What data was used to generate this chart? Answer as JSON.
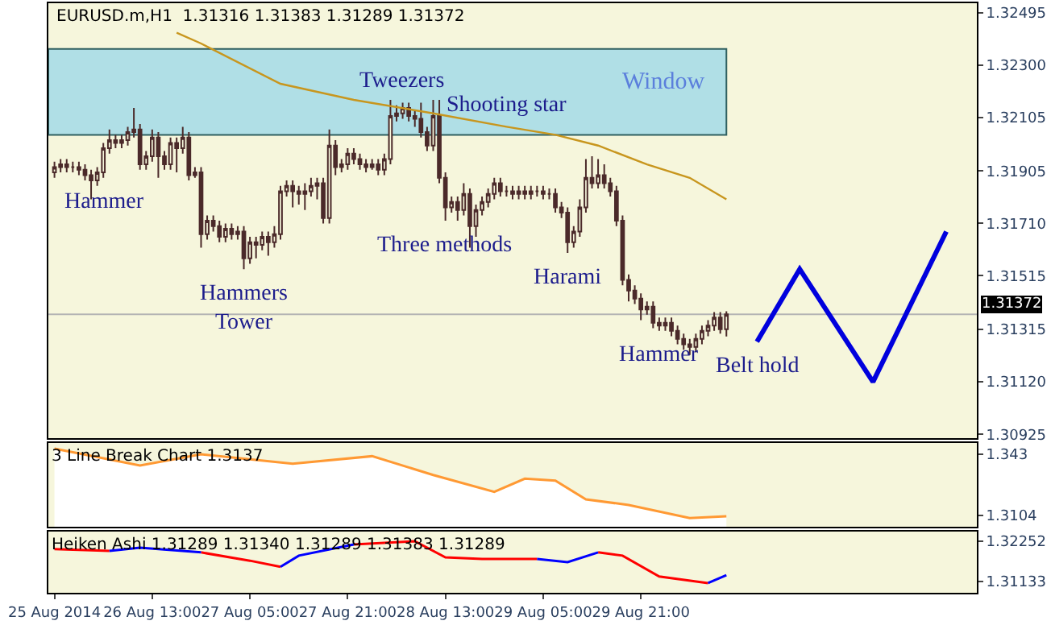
{
  "chart_data": [
    {
      "type": "candlestick",
      "title": "EURUSD.m,H1  1.31316 1.31383 1.31289 1.31372",
      "color": "#4b2a2a",
      "x": [
        "2014-08-25T21:00",
        "2014-08-25T22:00",
        "2014-08-25T23:00",
        "2014-08-26T00:00",
        "2014-08-26T01:00",
        "2014-08-26T02:00",
        "2014-08-26T03:00",
        "2014-08-26T04:00",
        "2014-08-26T05:00",
        "2014-08-26T06:00",
        "2014-08-26T07:00",
        "2014-08-26T08:00",
        "2014-08-26T09:00",
        "2014-08-26T10:00",
        "2014-08-26T11:00",
        "2014-08-26T12:00",
        "2014-08-26T13:00",
        "2014-08-26T14:00",
        "2014-08-26T15:00",
        "2014-08-26T16:00",
        "2014-08-26T17:00",
        "2014-08-26T18:00",
        "2014-08-26T19:00",
        "2014-08-26T20:00",
        "2014-08-26T21:00",
        "2014-08-26T22:00",
        "2014-08-26T23:00",
        "2014-08-27T00:00",
        "2014-08-27T01:00",
        "2014-08-27T02:00",
        "2014-08-27T03:00",
        "2014-08-27T04:00",
        "2014-08-27T05:00",
        "2014-08-27T06:00",
        "2014-08-27T07:00",
        "2014-08-27T08:00",
        "2014-08-27T09:00",
        "2014-08-27T10:00",
        "2014-08-27T11:00",
        "2014-08-27T12:00",
        "2014-08-27T13:00",
        "2014-08-27T14:00",
        "2014-08-27T15:00",
        "2014-08-27T16:00",
        "2014-08-27T17:00",
        "2014-08-27T18:00",
        "2014-08-27T19:00",
        "2014-08-27T20:00",
        "2014-08-27T21:00",
        "2014-08-27T22:00",
        "2014-08-27T23:00",
        "2014-08-28T00:00",
        "2014-08-28T01:00",
        "2014-08-28T02:00",
        "2014-08-28T03:00",
        "2014-08-28T04:00",
        "2014-08-28T05:00",
        "2014-08-28T06:00",
        "2014-08-28T07:00",
        "2014-08-28T08:00",
        "2014-08-28T09:00",
        "2014-08-28T10:00",
        "2014-08-28T11:00",
        "2014-08-28T12:00",
        "2014-08-28T13:00",
        "2014-08-28T14:00",
        "2014-08-28T15:00",
        "2014-08-28T16:00",
        "2014-08-28T17:00",
        "2014-08-28T18:00",
        "2014-08-28T19:00",
        "2014-08-28T20:00",
        "2014-08-28T21:00",
        "2014-08-28T22:00",
        "2014-08-28T23:00",
        "2014-08-29T00:00",
        "2014-08-29T01:00",
        "2014-08-29T02:00",
        "2014-08-29T03:00",
        "2014-08-29T04:00",
        "2014-08-29T05:00",
        "2014-08-29T06:00",
        "2014-08-29T07:00",
        "2014-08-29T08:00",
        "2014-08-29T09:00",
        "2014-08-29T10:00",
        "2014-08-29T11:00",
        "2014-08-29T12:00",
        "2014-08-29T13:00",
        "2014-08-29T14:00",
        "2014-08-29T15:00",
        "2014-08-29T16:00",
        "2014-08-29T17:00",
        "2014-08-29T18:00",
        "2014-08-29T19:00",
        "2014-08-29T20:00",
        "2014-08-29T21:00",
        "2014-08-29T22:00",
        "2014-08-29T23:00",
        "2014-08-30T00:00",
        "2014-08-30T01:00",
        "2014-08-30T02:00",
        "2014-08-30T03:00",
        "2014-08-30T04:00",
        "2014-08-30T05:00",
        "2014-08-30T06:00",
        "2014-08-30T07:00",
        "2014-08-30T08:00",
        "2014-08-30T09:00",
        "2014-08-30T10:00",
        "2014-08-30T11:00"
      ],
      "ohlc": [
        [
          1.319,
          1.3194,
          1.3188,
          1.3192
        ],
        [
          1.3192,
          1.3195,
          1.319,
          1.3193
        ],
        [
          1.3193,
          1.3195,
          1.319,
          1.3192
        ],
        [
          1.3192,
          1.3194,
          1.319,
          1.3192
        ],
        [
          1.3192,
          1.3194,
          1.3189,
          1.3191
        ],
        [
          1.3191,
          1.3193,
          1.3187,
          1.3189
        ],
        [
          1.3189,
          1.3191,
          1.318,
          1.3187
        ],
        [
          1.3187,
          1.3192,
          1.3185,
          1.319
        ],
        [
          1.319,
          1.3201,
          1.3188,
          1.3199
        ],
        [
          1.3199,
          1.3206,
          1.3197,
          1.3202
        ],
        [
          1.3202,
          1.3204,
          1.3199,
          1.3201
        ],
        [
          1.3201,
          1.3204,
          1.3199,
          1.3202
        ],
        [
          1.3202,
          1.3207,
          1.32,
          1.3205
        ],
        [
          1.3205,
          1.3214,
          1.3203,
          1.3206
        ],
        [
          1.3206,
          1.3208,
          1.3191,
          1.3193
        ],
        [
          1.3193,
          1.3198,
          1.3191,
          1.3196
        ],
        [
          1.3196,
          1.3206,
          1.3194,
          1.3203
        ],
        [
          1.3203,
          1.3205,
          1.3188,
          1.3196
        ],
        [
          1.3196,
          1.3198,
          1.3191,
          1.3193
        ],
        [
          1.3193,
          1.3203,
          1.3191,
          1.3201
        ],
        [
          1.3201,
          1.3203,
          1.319,
          1.3199
        ],
        [
          1.3199,
          1.3207,
          1.3197,
          1.3203
        ],
        [
          1.3203,
          1.3205,
          1.3187,
          1.3189
        ],
        [
          1.3189,
          1.3192,
          1.3188,
          1.319
        ],
        [
          1.319,
          1.3192,
          1.3162,
          1.3167
        ],
        [
          1.3167,
          1.3174,
          1.3165,
          1.3172
        ],
        [
          1.3172,
          1.3174,
          1.3168,
          1.317
        ],
        [
          1.317,
          1.3172,
          1.3164,
          1.3166
        ],
        [
          1.3166,
          1.3171,
          1.3164,
          1.3169
        ],
        [
          1.3169,
          1.3171,
          1.3165,
          1.3167
        ],
        [
          1.3167,
          1.317,
          1.3165,
          1.3168
        ],
        [
          1.3168,
          1.317,
          1.3154,
          1.3158
        ],
        [
          1.3158,
          1.3166,
          1.3156,
          1.3164
        ],
        [
          1.3164,
          1.3166,
          1.3158,
          1.3163
        ],
        [
          1.3163,
          1.3168,
          1.3161,
          1.3166
        ],
        [
          1.3166,
          1.3168,
          1.3159,
          1.3164
        ],
        [
          1.3164,
          1.317,
          1.3162,
          1.3167
        ],
        [
          1.3167,
          1.3185,
          1.3165,
          1.3183
        ],
        [
          1.3183,
          1.3187,
          1.3181,
          1.3185
        ],
        [
          1.3185,
          1.3187,
          1.3177,
          1.3183
        ],
        [
          1.3183,
          1.3185,
          1.3178,
          1.3182
        ],
        [
          1.3182,
          1.3186,
          1.3176,
          1.3183
        ],
        [
          1.3183,
          1.3188,
          1.3181,
          1.3185
        ],
        [
          1.3185,
          1.3188,
          1.318,
          1.3186
        ],
        [
          1.3186,
          1.3188,
          1.3171,
          1.3173
        ],
        [
          1.3173,
          1.3206,
          1.3171,
          1.32
        ],
        [
          1.32,
          1.3202,
          1.3189,
          1.3192
        ],
        [
          1.3192,
          1.3195,
          1.319,
          1.3193
        ],
        [
          1.3193,
          1.3199,
          1.3191,
          1.3197
        ],
        [
          1.3197,
          1.3199,
          1.3193,
          1.3195
        ],
        [
          1.3195,
          1.3197,
          1.3191,
          1.3193
        ],
        [
          1.3193,
          1.3195,
          1.319,
          1.3192
        ],
        [
          1.3192,
          1.3195,
          1.3191,
          1.3193
        ],
        [
          1.3193,
          1.3195,
          1.3189,
          1.3191
        ],
        [
          1.3191,
          1.3197,
          1.3189,
          1.3195
        ],
        [
          1.3195,
          1.3217,
          1.3193,
          1.3211
        ],
        [
          1.3211,
          1.3215,
          1.3209,
          1.3212
        ],
        [
          1.3212,
          1.3216,
          1.321,
          1.3214
        ],
        [
          1.3214,
          1.3216,
          1.3209,
          1.3211
        ],
        [
          1.3211,
          1.3213,
          1.3207,
          1.321
        ],
        [
          1.321,
          1.3216,
          1.3203,
          1.3205
        ],
        [
          1.3205,
          1.3207,
          1.3198,
          1.32
        ],
        [
          1.32,
          1.3217,
          1.3198,
          1.3211
        ],
        [
          1.3211,
          1.3217,
          1.3186,
          1.3188
        ],
        [
          1.3188,
          1.319,
          1.3172,
          1.3177
        ],
        [
          1.3177,
          1.3181,
          1.3175,
          1.3179
        ],
        [
          1.3179,
          1.3181,
          1.3172,
          1.3176
        ],
        [
          1.3176,
          1.3186,
          1.3174,
          1.3182
        ],
        [
          1.3182,
          1.3184,
          1.3162,
          1.317
        ],
        [
          1.317,
          1.3178,
          1.3166,
          1.3176
        ],
        [
          1.3176,
          1.3181,
          1.3174,
          1.3179
        ],
        [
          1.3179,
          1.3184,
          1.3177,
          1.3182
        ],
        [
          1.3182,
          1.3188,
          1.318,
          1.3186
        ],
        [
          1.3186,
          1.3188,
          1.3181,
          1.3183
        ],
        [
          1.3183,
          1.3185,
          1.3181,
          1.3183
        ],
        [
          1.3183,
          1.3185,
          1.318,
          1.3182
        ],
        [
          1.3182,
          1.3185,
          1.318,
          1.3183
        ],
        [
          1.3183,
          1.3185,
          1.318,
          1.3182
        ],
        [
          1.3182,
          1.3185,
          1.318,
          1.3183
        ],
        [
          1.3183,
          1.3185,
          1.3181,
          1.3183
        ],
        [
          1.3183,
          1.3185,
          1.318,
          1.3182
        ],
        [
          1.3182,
          1.3184,
          1.318,
          1.3182
        ],
        [
          1.3182,
          1.3184,
          1.3175,
          1.3177
        ],
        [
          1.3177,
          1.3179,
          1.3173,
          1.3175
        ],
        [
          1.3175,
          1.3177,
          1.316,
          1.3164
        ],
        [
          1.3164,
          1.317,
          1.3162,
          1.3168
        ],
        [
          1.3168,
          1.318,
          1.3166,
          1.3177
        ],
        [
          1.3177,
          1.3195,
          1.3175,
          1.3188
        ],
        [
          1.3188,
          1.3196,
          1.3184,
          1.3186
        ],
        [
          1.3186,
          1.3195,
          1.3184,
          1.3189
        ],
        [
          1.3189,
          1.3193,
          1.3184,
          1.3186
        ],
        [
          1.3186,
          1.3188,
          1.3181,
          1.3183
        ],
        [
          1.3183,
          1.3185,
          1.317,
          1.3172
        ],
        [
          1.3172,
          1.3174,
          1.3148,
          1.315
        ],
        [
          1.315,
          1.3152,
          1.3142,
          1.3146
        ],
        [
          1.3146,
          1.3148,
          1.3141,
          1.3143
        ],
        [
          1.3143,
          1.3145,
          1.3135,
          1.3139
        ],
        [
          1.3139,
          1.3142,
          1.3137,
          1.314
        ],
        [
          1.314,
          1.3142,
          1.3132,
          1.3134
        ],
        [
          1.3134,
          1.3136,
          1.3131,
          1.3133
        ],
        [
          1.3133,
          1.3136,
          1.3131,
          1.3134
        ],
        [
          1.3134,
          1.3136,
          1.3129,
          1.3131
        ],
        [
          1.3131,
          1.3133,
          1.3126,
          1.3128
        ],
        [
          1.3128,
          1.313,
          1.3124,
          1.3126
        ],
        [
          1.3126,
          1.3128,
          1.3122,
          1.3125
        ],
        [
          1.3125,
          1.313,
          1.3123,
          1.3128
        ],
        [
          1.3128,
          1.3133,
          1.3126,
          1.3131
        ],
        [
          1.3131,
          1.3135,
          1.3129,
          1.3133
        ],
        [
          1.3133,
          1.3138,
          1.3131,
          1.3136
        ],
        [
          1.3136,
          1.3138,
          1.313,
          1.31316
        ],
        [
          1.31316,
          1.31383,
          1.31289,
          1.31372
        ]
      ],
      "series": [
        {
          "type": "line",
          "color": "#c8961e",
          "x": [
            "2014-08-26T17:00",
            "2014-08-26T21:00",
            "2014-08-27T10:00",
            "2014-08-27T22:00",
            "2014-08-28T11:00",
            "2014-08-28T23:00",
            "2014-08-29T07:00",
            "2014-08-29T14:00",
            "2014-08-29T22:00",
            "2014-08-30T05:00",
            "2014-08-30T11:00"
          ],
          "values": [
            1.3242,
            1.3238,
            1.3223,
            1.3217,
            1.3212,
            1.3207,
            1.3204,
            1.32,
            1.3193,
            1.3188,
            1.318
          ]
        },
        {
          "type": "line",
          "color": "#0000dd",
          "x": [
            "2014-08-30T16:00",
            "2014-08-30T23:00",
            "2014-08-31T11:00",
            "2014-08-31T23:00"
          ],
          "values": [
            1.3127,
            1.3154,
            1.3112,
            1.3168
          ]
        }
      ],
      "bands": [
        {
          "axis": "y",
          "from": 1.3204,
          "to": 1.3236,
          "label": "Window",
          "color": "#b0dfe6"
        }
      ],
      "ref_lines": [
        {
          "axis": "y",
          "value": 1.31372,
          "label": "1.31372",
          "color": "#b4b4b4"
        }
      ],
      "annotations": [
        {
          "text": "Hammer",
          "x": "2014-08-26T05:00",
          "y": 1.3188
        },
        {
          "text": "Hammers\nTower",
          "x": "2014-08-27T04:00",
          "y": 1.3154
        },
        {
          "text": "Three methods",
          "x": "2014-08-28T13:00",
          "y": 1.3172
        },
        {
          "text": "Tweezers",
          "x": "2014-08-28T06:00",
          "y": 1.3216
        },
        {
          "text": "Shooting star",
          "x": "2014-08-28T23:00",
          "y": 1.3207
        },
        {
          "text": "Harami",
          "x": "2014-08-29T09:00",
          "y": 1.316
        },
        {
          "text": "Hammer",
          "x": "2014-08-30T00:00",
          "y": 1.3131
        },
        {
          "text": "Belt hold",
          "x": "2014-08-30T16:00",
          "y": 1.3127
        }
      ],
      "xlim": [
        "2014-08-25T20:00",
        "2014-09-01T04:00"
      ],
      "ylim": [
        1.3091,
        1.3253
      ],
      "yticks": [
        1.32495,
        {
          "value": 1.323,
          "label": "1.32300"
        },
        1.32105,
        1.31905,
        {
          "value": 1.3171,
          "label": "1.31710"
        },
        1.31515,
        1.31315,
        {
          "value": 1.3112,
          "label": "1.31120"
        },
        1.30925
      ],
      "tick_labels": "y"
    },
    {
      "type": "area",
      "title": "3 Line Break Chart 1.3137",
      "color": "#ff9933",
      "x": [
        "2014-08-25T21:00",
        "2014-08-26T11:00",
        "2014-08-26T21:00",
        "2014-08-27T12:00",
        "2014-08-28T01:00",
        "2014-08-28T11:00",
        "2014-08-28T21:00",
        "2014-08-29T02:00",
        "2014-08-29T07:00",
        "2014-08-29T12:00",
        "2014-08-29T19:00",
        "2014-08-30T05:00",
        "2014-08-30T11:00"
      ],
      "values": [
        1.346,
        1.337,
        1.343,
        1.338,
        1.342,
        1.332,
        1.323,
        1.33,
        1.329,
        1.319,
        1.316,
        1.309,
        1.31
      ],
      "xlim": [
        "2014-08-25T20:00",
        "2014-09-01T04:00"
      ],
      "ylim": [
        1.3044,
        1.349
      ],
      "yticks": [
        1.343,
        1.3104
      ],
      "tick_labels": "y"
    },
    {
      "type": "line",
      "title": "Heiken Ashi 1.31289 1.31340 1.31289 1.31383 1.31289",
      "x": [
        "2014-08-25T21:00",
        "2014-08-26T06:00",
        "2014-08-26T11:00",
        "2014-08-26T21:00",
        "2014-08-27T05:00",
        "2014-08-27T10:00",
        "2014-08-27T13:00",
        "2014-08-27T22:00",
        "2014-08-28T08:00",
        "2014-08-28T13:00",
        "2014-08-28T19:00",
        "2014-08-29T04:00",
        "2014-08-29T09:00",
        "2014-08-29T14:00",
        "2014-08-29T18:00",
        "2014-08-30T00:00",
        "2014-08-30T08:00",
        "2014-08-30T11:00"
      ],
      "series": [
        {
          "color": "#ff0000",
          "values": [
            1.3203,
            1.3198,
            null,
            1.3194,
            1.3171,
            1.3154,
            null,
            1.3216,
            1.3225,
            1.318,
            1.3176,
            1.3176,
            null,
            1.3194,
            1.3185,
            1.3127,
            1.3109,
            null
          ]
        },
        {
          "color": "#0000ff",
          "values": [
            null,
            1.3198,
            1.3207,
            1.3194,
            null,
            1.3154,
            1.3185,
            1.3216,
            null,
            null,
            null,
            1.3176,
            1.3167,
            1.3194,
            null,
            null,
            1.3109,
            1.3131
          ]
        }
      ],
      "xlim": [
        "2014-08-25T20:00",
        "2014-09-01T04:00"
      ],
      "xticks": [
        {
          "value": "2014-08-25T21:00",
          "label": "25 Aug 2014"
        },
        {
          "value": "2014-08-26T13:00",
          "label": "26 Aug 13:00"
        },
        {
          "value": "2014-08-27T05:00",
          "label": "27 Aug 05:00"
        },
        {
          "value": "2014-08-27T21:00",
          "label": "27 Aug 21:00"
        },
        {
          "value": "2014-08-28T13:00",
          "label": "28 Aug 13:00"
        },
        {
          "value": "2014-08-29T05:00",
          "label": "29 Aug 05:00"
        },
        {
          "value": "2014-08-29T21:00",
          "label": "29 Aug 21:00"
        }
      ],
      "ylim": [
        1.3082,
        1.3252
      ],
      "yticks": [
        1.32252,
        1.31133
      ]
    }
  ]
}
